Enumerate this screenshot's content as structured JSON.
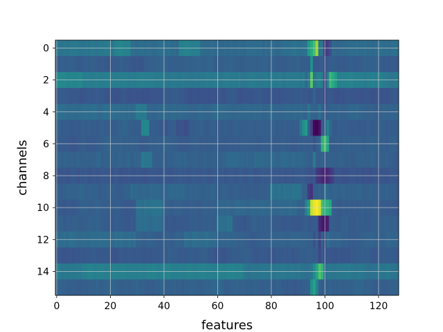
{
  "chart_data": {
    "type": "heatmap",
    "title": "",
    "xlabel": "features",
    "ylabel": "channels",
    "n_cols": 128,
    "n_rows": 16,
    "xlim": [
      -0.5,
      127.5
    ],
    "ylim": [
      15.5,
      -0.5
    ],
    "x_ticks": [
      0,
      20,
      40,
      60,
      80,
      100,
      120
    ],
    "x_tick_labels": [
      "0",
      "20",
      "40",
      "60",
      "80",
      "100",
      "120"
    ],
    "y_ticks": [
      0,
      2,
      4,
      6,
      8,
      10,
      12,
      14
    ],
    "y_tick_labels": [
      "0",
      "2",
      "4",
      "6",
      "8",
      "10",
      "12",
      "14"
    ],
    "grid": true,
    "colormap": "viridis",
    "value_range": [
      0,
      1
    ],
    "row_baseline": [
      0.36,
      0.3,
      0.42,
      0.27,
      0.33,
      0.3,
      0.3,
      0.31,
      0.27,
      0.31,
      0.3,
      0.3,
      0.32,
      0.28,
      0.4,
      0.31
    ],
    "row_segments": [
      [
        [
          0,
          22,
          0.4
        ],
        [
          22,
          28,
          0.45
        ],
        [
          28,
          46,
          0.36
        ],
        [
          46,
          54,
          0.44
        ],
        [
          54,
          84,
          0.35
        ],
        [
          84,
          94,
          0.38
        ]
      ],
      [],
      [
        [
          0,
          10,
          0.46
        ],
        [
          10,
          40,
          0.43
        ],
        [
          40,
          92,
          0.41
        ]
      ],
      [],
      [
        [
          0,
          30,
          0.36
        ],
        [
          30,
          34,
          0.42
        ],
        [
          34,
          92,
          0.34
        ]
      ],
      [
        [
          32,
          35,
          0.46
        ],
        [
          45,
          50,
          0.25
        ],
        [
          60,
          90,
          0.3
        ]
      ],
      [],
      [
        [
          0,
          30,
          0.32
        ],
        [
          32,
          36,
          0.4
        ],
        [
          64,
          92,
          0.34
        ]
      ],
      [
        [
          0,
          40,
          0.27
        ],
        [
          40,
          94,
          0.28
        ]
      ],
      [
        [
          28,
          48,
          0.34
        ],
        [
          80,
          92,
          0.38
        ]
      ],
      [
        [
          30,
          40,
          0.38
        ],
        [
          60,
          90,
          0.34
        ]
      ],
      [
        [
          30,
          40,
          0.36
        ],
        [
          60,
          66,
          0.38
        ]
      ],
      [
        [
          0,
          30,
          0.36
        ],
        [
          48,
          60,
          0.36
        ]
      ],
      [],
      [
        [
          10,
          70,
          0.44
        ],
        [
          80,
          92,
          0.4
        ]
      ],
      []
    ],
    "hotspots": [
      [
        0,
        94,
        0.55
      ],
      [
        0,
        95,
        0.62
      ],
      [
        0,
        96,
        0.7
      ],
      [
        0,
        97,
        0.85
      ],
      [
        0,
        98,
        0.4
      ],
      [
        0,
        100,
        0.15
      ],
      [
        0,
        101,
        0.2
      ],
      [
        0,
        102,
        0.25
      ],
      [
        1,
        95,
        0.5
      ],
      [
        1,
        100,
        0.25
      ],
      [
        2,
        93,
        0.35
      ],
      [
        2,
        95,
        0.75
      ],
      [
        2,
        96,
        0.4
      ],
      [
        2,
        98,
        0.45
      ],
      [
        2,
        100,
        0.2
      ],
      [
        2,
        102,
        0.68
      ],
      [
        2,
        103,
        0.62
      ],
      [
        2,
        104,
        0.55
      ],
      [
        3,
        96,
        0.33
      ],
      [
        3,
        100,
        0.2
      ],
      [
        4,
        94,
        0.4
      ],
      [
        4,
        98,
        0.38
      ],
      [
        4,
        100,
        0.3
      ],
      [
        5,
        91,
        0.4
      ],
      [
        5,
        92,
        0.5
      ],
      [
        5,
        93,
        0.55
      ],
      [
        5,
        95,
        0.2
      ],
      [
        5,
        96,
        0.02
      ],
      [
        5,
        97,
        0.0
      ],
      [
        5,
        98,
        0.05
      ],
      [
        5,
        100,
        0.3
      ],
      [
        5,
        101,
        0.45
      ],
      [
        5,
        102,
        0.35
      ],
      [
        5,
        103,
        0.3
      ],
      [
        6,
        96,
        0.25
      ],
      [
        6,
        97,
        0.3
      ],
      [
        6,
        99,
        0.65
      ],
      [
        6,
        100,
        0.7
      ],
      [
        6,
        101,
        0.6
      ],
      [
        7,
        96,
        0.42
      ],
      [
        7,
        98,
        0.3
      ],
      [
        7,
        100,
        0.28
      ],
      [
        8,
        97,
        0.18
      ],
      [
        8,
        98,
        0.15
      ],
      [
        8,
        99,
        0.12
      ],
      [
        8,
        100,
        0.1
      ],
      [
        8,
        101,
        0.12
      ],
      [
        8,
        102,
        0.16
      ],
      [
        8,
        103,
        0.2
      ],
      [
        9,
        94,
        0.18
      ],
      [
        9,
        95,
        0.15
      ],
      [
        9,
        98,
        0.32
      ],
      [
        9,
        99,
        0.3
      ],
      [
        9,
        100,
        0.38
      ],
      [
        10,
        93,
        0.45
      ],
      [
        10,
        94,
        0.55
      ],
      [
        10,
        95,
        0.92
      ],
      [
        10,
        96,
        0.97
      ],
      [
        10,
        97,
        1.0
      ],
      [
        10,
        98,
        0.95
      ],
      [
        10,
        99,
        0.7
      ],
      [
        10,
        100,
        0.62
      ],
      [
        10,
        101,
        0.65
      ],
      [
        10,
        102,
        0.58
      ],
      [
        11,
        94,
        0.28
      ],
      [
        11,
        98,
        0.12
      ],
      [
        11,
        99,
        0.08
      ],
      [
        11,
        100,
        0.05
      ],
      [
        11,
        101,
        0.1
      ],
      [
        12,
        96,
        0.25
      ],
      [
        12,
        98,
        0.2
      ],
      [
        12,
        100,
        0.2
      ],
      [
        12,
        101,
        0.38
      ],
      [
        13,
        96,
        0.3
      ],
      [
        13,
        98,
        0.22
      ],
      [
        13,
        100,
        0.25
      ],
      [
        14,
        96,
        0.48
      ],
      [
        14,
        97,
        0.58
      ],
      [
        14,
        98,
        0.72
      ],
      [
        14,
        99,
        0.66
      ],
      [
        14,
        100,
        0.35
      ],
      [
        15,
        95,
        0.5
      ],
      [
        15,
        96,
        0.58
      ],
      [
        15,
        97,
        0.45
      ],
      [
        15,
        99,
        0.3
      ]
    ]
  }
}
